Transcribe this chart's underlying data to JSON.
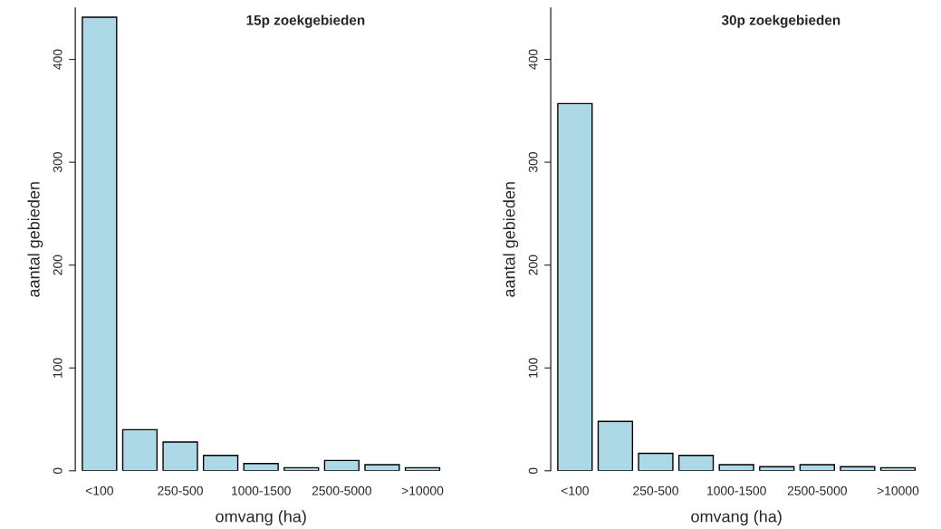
{
  "chart_data": [
    {
      "type": "bar",
      "title": "15p zoekgebieden",
      "xlabel": "omvang (ha)",
      "ylabel": "aantal gebieden",
      "categories": [
        "<100",
        null,
        "250-500",
        null,
        "1000-1500",
        null,
        "2500-5000",
        null,
        ">10000"
      ],
      "values": [
        441,
        40,
        28,
        15,
        7,
        3,
        10,
        6,
        3
      ],
      "color": "#add8e6",
      "ylim": [
        0,
        450
      ],
      "yticks": [
        0,
        100,
        200,
        300,
        400
      ],
      "grid": false,
      "legend": false
    },
    {
      "type": "bar",
      "title": "30p zoekgebieden",
      "xlabel": "omvang (ha)",
      "ylabel": "aantal gebieden",
      "categories": [
        "<100",
        null,
        "250-500",
        null,
        "1000-1500",
        null,
        "2500-5000",
        null,
        ">10000"
      ],
      "values": [
        357,
        48,
        17,
        15,
        6,
        4,
        6,
        4,
        3
      ],
      "color": "#add8e6",
      "ylim": [
        0,
        450
      ],
      "yticks": [
        0,
        100,
        200,
        300,
        400
      ],
      "grid": false,
      "legend": false
    }
  ]
}
